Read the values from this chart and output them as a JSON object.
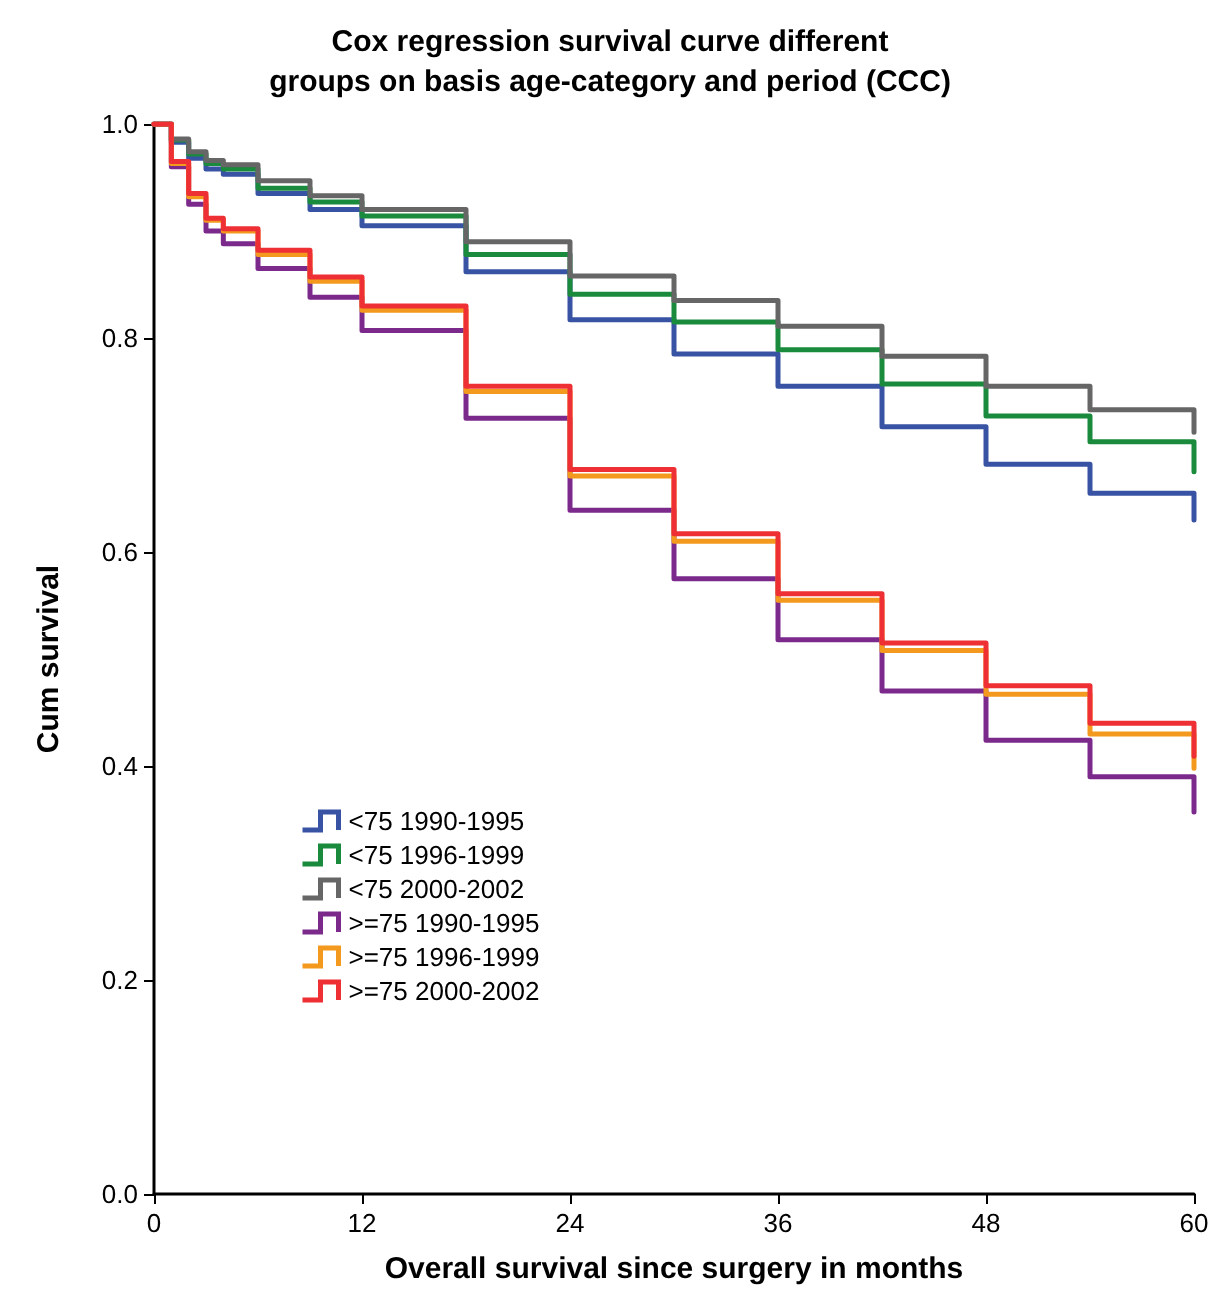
{
  "chart_data": {
    "type": "step",
    "title": "Cox regression survival curve different\ngroups on basis age-category and period (CCC)",
    "xlabel": "Overall survival since surgery in months",
    "ylabel": "Cum survival",
    "x": [
      0,
      1,
      2,
      3,
      4,
      6,
      9,
      12,
      18,
      24,
      30,
      36,
      42,
      48,
      54,
      60
    ],
    "series": [
      {
        "name": "<75 1990-1995",
        "color": "#3953a4",
        "values": [
          1,
          0.983,
          0.968,
          0.958,
          0.953,
          0.935,
          0.92,
          0.905,
          0.862,
          0.817,
          0.785,
          0.755,
          0.717,
          0.682,
          0.655,
          0.63
        ]
      },
      {
        "name": "<75 1996-1999",
        "color": "#1a8a3c",
        "values": [
          1,
          0.985,
          0.972,
          0.963,
          0.958,
          0.94,
          0.927,
          0.914,
          0.878,
          0.841,
          0.815,
          0.789,
          0.757,
          0.727,
          0.703,
          0.675
        ]
      },
      {
        "name": "<75 2000-2002",
        "color": "#666666",
        "values": [
          1,
          0.986,
          0.974,
          0.966,
          0.962,
          0.947,
          0.933,
          0.92,
          0.89,
          0.858,
          0.835,
          0.811,
          0.783,
          0.755,
          0.733,
          0.712
        ]
      },
      {
        "name": ">=75 1990-1995",
        "color": "#7b2a8c",
        "values": [
          1,
          0.96,
          0.925,
          0.9,
          0.888,
          0.865,
          0.838,
          0.807,
          0.725,
          0.639,
          0.575,
          0.518,
          0.47,
          0.424,
          0.39,
          0.357
        ]
      },
      {
        "name": ">=75 1996-1999",
        "color": "#f39a1e",
        "values": [
          1,
          0.963,
          0.932,
          0.91,
          0.9,
          0.878,
          0.853,
          0.826,
          0.75,
          0.671,
          0.61,
          0.555,
          0.508,
          0.467,
          0.43,
          0.398
        ]
      },
      {
        "name": ">=75 2000-2002",
        "color": "#ee2f34",
        "values": [
          1,
          0.965,
          0.935,
          0.912,
          0.902,
          0.882,
          0.857,
          0.83,
          0.755,
          0.677,
          0.617,
          0.561,
          0.515,
          0.475,
          0.44,
          0.409
        ]
      }
    ],
    "xlim": [
      0,
      60
    ],
    "xticks": [
      0,
      12,
      24,
      36,
      48,
      60
    ],
    "ylim": [
      0,
      1
    ],
    "yticks": [
      {
        "value": 0,
        "label": "0.0"
      },
      {
        "value": 0.2,
        "label": "0.2"
      },
      {
        "value": 0.4,
        "label": "0.4"
      },
      {
        "value": 0.6,
        "label": "0.6"
      },
      {
        "value": 0.8,
        "label": "0.8"
      },
      {
        "value": 1,
        "label": "1.0"
      }
    ],
    "grid": false,
    "legend": "bottom left",
    "marker": "none",
    "line_style": "solid"
  }
}
